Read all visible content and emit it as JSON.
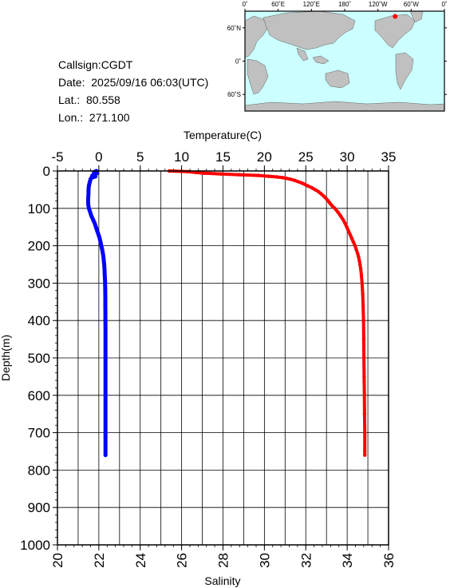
{
  "info": {
    "callsign": "Callsign:CGDT",
    "date": "Date:  2025/09/16 06:03(UTC)",
    "lat": "Lat.:  80.558",
    "lon": "Lon.:  271.100"
  },
  "map": {
    "lon_ticks": [
      "0˚",
      "60˚E",
      "120˚E",
      "180˚",
      "120˚W",
      "60˚W",
      "0˚"
    ],
    "lat_ticks": [
      "60˚N",
      "0˚",
      "60˚S"
    ],
    "station": {
      "lon": 271.1,
      "lat": 80.558
    },
    "colors": {
      "ocean": "#ccffff",
      "land": "#c0c0c0",
      "station": "#ff0000"
    }
  },
  "chart_data": {
    "type": "line",
    "ylabel": "Depth(m)",
    "ylim": [
      0,
      1000
    ],
    "y_ticks": [
      0,
      100,
      200,
      300,
      400,
      500,
      600,
      700,
      800,
      900,
      1000
    ],
    "grid": true,
    "temperature_axis": {
      "label": "Temperature(C)",
      "range": [
        -5,
        35
      ],
      "ticks": [
        -5,
        0,
        5,
        10,
        15,
        20,
        25,
        30,
        35
      ]
    },
    "salinity_axis": {
      "label": "Salinity",
      "range": [
        20,
        36
      ],
      "ticks": [
        20,
        22,
        24,
        26,
        28,
        30,
        32,
        34,
        36
      ]
    },
    "series": [
      {
        "axis": "temperature",
        "color": "#0000ff",
        "depth": [
          0,
          3,
          6,
          9,
          12,
          15,
          18,
          22,
          26,
          30,
          35,
          40,
          50,
          60,
          70,
          80,
          90,
          100,
          110,
          120,
          130,
          140,
          150,
          160,
          170,
          180,
          190,
          200,
          210,
          220,
          230,
          240,
          250,
          260,
          270,
          280,
          290,
          300,
          320,
          340,
          360,
          380,
          400,
          420,
          440,
          460,
          480,
          500,
          550,
          600,
          650,
          700,
          750,
          760
        ],
        "values": [
          -0.3,
          -0.6,
          -0.2,
          -0.5,
          -0.8,
          -0.4,
          -0.9,
          -1.0,
          -1.05,
          -1.1,
          -1.15,
          -1.2,
          -1.25,
          -1.25,
          -1.28,
          -1.3,
          -1.28,
          -1.2,
          -1.05,
          -0.9,
          -0.7,
          -0.5,
          -0.35,
          -0.2,
          -0.05,
          0.1,
          0.2,
          0.3,
          0.4,
          0.48,
          0.55,
          0.6,
          0.65,
          0.68,
          0.7,
          0.72,
          0.74,
          0.75,
          0.77,
          0.78,
          0.78,
          0.79,
          0.79,
          0.8,
          0.8,
          0.8,
          0.8,
          0.8,
          0.8,
          0.8,
          0.8,
          0.8,
          0.8,
          0.8
        ]
      },
      {
        "axis": "salinity",
        "color": "#ff0000",
        "depth": [
          0,
          2,
          4,
          6,
          8,
          10,
          12,
          14,
          16,
          18,
          20,
          22,
          25,
          28,
          32,
          36,
          40,
          45,
          50,
          55,
          60,
          65,
          70,
          75,
          80,
          85,
          90,
          95,
          100,
          110,
          120,
          130,
          140,
          150,
          160,
          170,
          180,
          190,
          200,
          210,
          220,
          230,
          240,
          250,
          260,
          280,
          300,
          330,
          360,
          400,
          450,
          500,
          550,
          600,
          650,
          700,
          750,
          760
        ],
        "values": [
          25.4,
          26.3,
          26.7,
          27.1,
          27.9,
          28.8,
          29.7,
          30.2,
          30.6,
          30.9,
          31.1,
          31.25,
          31.45,
          31.6,
          31.8,
          31.95,
          32.1,
          32.3,
          32.45,
          32.6,
          32.72,
          32.82,
          32.92,
          33.0,
          33.08,
          33.15,
          33.22,
          33.3,
          33.4,
          33.55,
          33.68,
          33.8,
          33.9,
          33.98,
          34.06,
          34.14,
          34.22,
          34.3,
          34.38,
          34.44,
          34.5,
          34.55,
          34.59,
          34.62,
          34.65,
          34.69,
          34.72,
          34.75,
          34.77,
          34.79,
          34.8,
          34.81,
          34.82,
          34.83,
          34.84,
          34.85,
          34.85,
          34.85
        ]
      }
    ]
  }
}
